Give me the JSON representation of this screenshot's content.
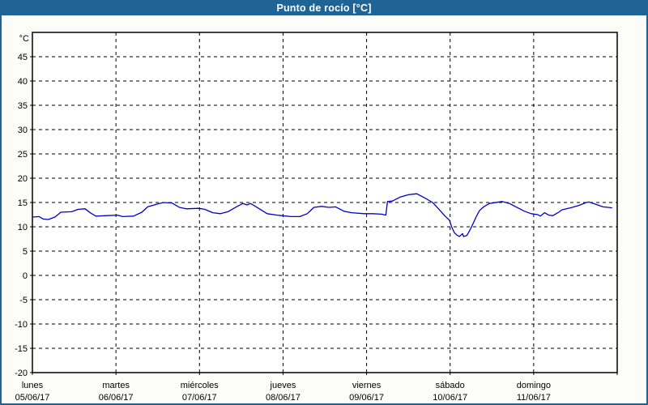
{
  "title": "Punto de rocío [°C]",
  "colors": {
    "titlebar_bg": "#1F6495",
    "window_border": "#1F6495",
    "window_bg": "#FCFDF8",
    "plot_bg": "#FFFFFF",
    "grid": "#000000",
    "axis": "#000000",
    "series_line": "#0000CC",
    "title_text": "#FFFFFF",
    "label_text": "#000000"
  },
  "chart_data": {
    "type": "line",
    "title": "Punto de rocío [°C]",
    "unit_label": "°C",
    "ylabel": "",
    "xlabel": "",
    "ylim": [
      -20,
      50
    ],
    "ytick_step": 5,
    "yticks": [
      -20,
      -15,
      -10,
      -5,
      0,
      5,
      10,
      15,
      20,
      25,
      30,
      35,
      40,
      45
    ],
    "grid": "dashed",
    "legend_position": "none",
    "x_days": [
      {
        "name": "lunes",
        "date": "05/06/17"
      },
      {
        "name": "martes",
        "date": "06/06/17"
      },
      {
        "name": "miércoles",
        "date": "07/06/17"
      },
      {
        "name": "jueves",
        "date": "08/06/17"
      },
      {
        "name": "viernes",
        "date": "09/06/17"
      },
      {
        "name": "sábado",
        "date": "10/06/17"
      },
      {
        "name": "domingo",
        "date": "11/06/17"
      }
    ],
    "series": [
      {
        "name": "Punto de rocío",
        "color": "#0000CC",
        "points": [
          [
            0.0,
            12.0
          ],
          [
            0.08,
            12.1
          ],
          [
            0.13,
            11.6
          ],
          [
            0.19,
            11.5
          ],
          [
            0.27,
            12.0
          ],
          [
            0.34,
            13.0
          ],
          [
            0.47,
            13.1
          ],
          [
            0.55,
            13.6
          ],
          [
            0.63,
            13.7
          ],
          [
            0.7,
            12.8
          ],
          [
            0.76,
            12.2
          ],
          [
            0.89,
            12.3
          ],
          [
            1.02,
            12.4
          ],
          [
            1.08,
            12.1
          ],
          [
            1.21,
            12.2
          ],
          [
            1.31,
            13.0
          ],
          [
            1.38,
            14.1
          ],
          [
            1.5,
            14.7
          ],
          [
            1.57,
            15.0
          ],
          [
            1.67,
            14.9
          ],
          [
            1.76,
            14.0
          ],
          [
            1.84,
            13.7
          ],
          [
            1.99,
            13.8
          ],
          [
            2.06,
            13.6
          ],
          [
            2.16,
            12.9
          ],
          [
            2.25,
            12.7
          ],
          [
            2.34,
            13.1
          ],
          [
            2.44,
            14.1
          ],
          [
            2.52,
            14.8
          ],
          [
            2.57,
            14.5
          ],
          [
            2.61,
            14.8
          ],
          [
            2.68,
            14.1
          ],
          [
            2.81,
            12.7
          ],
          [
            2.93,
            12.4
          ],
          [
            2.98,
            12.3
          ],
          [
            3.1,
            12.1
          ],
          [
            3.2,
            12.1
          ],
          [
            3.29,
            12.7
          ],
          [
            3.37,
            14.0
          ],
          [
            3.46,
            14.2
          ],
          [
            3.55,
            14.0
          ],
          [
            3.63,
            14.1
          ],
          [
            3.73,
            13.2
          ],
          [
            3.82,
            12.9
          ],
          [
            3.97,
            12.7
          ],
          [
            4.07,
            12.7
          ],
          [
            4.18,
            12.6
          ],
          [
            4.23,
            12.4
          ],
          [
            4.25,
            15.2
          ],
          [
            4.31,
            15.3
          ],
          [
            4.4,
            16.1
          ],
          [
            4.5,
            16.6
          ],
          [
            4.6,
            16.8
          ],
          [
            4.7,
            15.9
          ],
          [
            4.79,
            15.0
          ],
          [
            4.84,
            14.1
          ],
          [
            4.94,
            12.2
          ],
          [
            4.99,
            11.4
          ],
          [
            5.02,
            9.9
          ],
          [
            5.05,
            8.8
          ],
          [
            5.08,
            8.3
          ],
          [
            5.11,
            8.0
          ],
          [
            5.15,
            8.6
          ],
          [
            5.16,
            8.0
          ],
          [
            5.2,
            8.2
          ],
          [
            5.23,
            9.1
          ],
          [
            5.26,
            10.1
          ],
          [
            5.31,
            12.0
          ],
          [
            5.35,
            13.3
          ],
          [
            5.4,
            14.1
          ],
          [
            5.47,
            14.8
          ],
          [
            5.62,
            15.2
          ],
          [
            5.71,
            14.8
          ],
          [
            5.81,
            13.9
          ],
          [
            5.89,
            13.2
          ],
          [
            5.97,
            12.7
          ],
          [
            6.05,
            12.5
          ],
          [
            6.08,
            12.2
          ],
          [
            6.13,
            12.9
          ],
          [
            6.18,
            12.4
          ],
          [
            6.23,
            12.3
          ],
          [
            6.29,
            12.9
          ],
          [
            6.34,
            13.5
          ],
          [
            6.44,
            13.9
          ],
          [
            6.54,
            14.4
          ],
          [
            6.63,
            15.0
          ],
          [
            6.66,
            15.1
          ],
          [
            6.73,
            14.7
          ],
          [
            6.83,
            14.1
          ],
          [
            6.89,
            14.0
          ],
          [
            6.94,
            13.9
          ]
        ]
      }
    ]
  }
}
